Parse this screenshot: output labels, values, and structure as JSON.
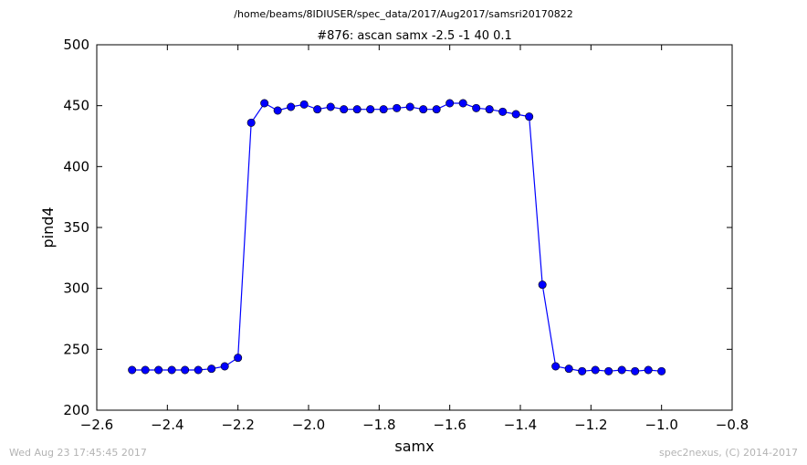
{
  "suptitle": "/home/beams/8IDIUSER/spec_data/2017/Aug2017/samsri20170822",
  "footer": {
    "timestamp": "Wed Aug 23 17:45:45 2017",
    "credit": "spec2nexus, (C) 2014-2017"
  },
  "colors": {
    "series": "#0000ff",
    "axes": "#000000",
    "footer": "#b3b3b3"
  },
  "chart_data": {
    "type": "line",
    "title": "#876: ascan  samx -2.5 -1  40 0.1",
    "xlabel": "samx",
    "ylabel": "pind4",
    "xlim": [
      -2.6,
      -0.8
    ],
    "ylim": [
      200,
      500
    ],
    "xticks": [
      -2.6,
      -2.4,
      -2.2,
      -2.0,
      -1.8,
      -1.6,
      -1.4,
      -1.2,
      -1.0,
      -0.8
    ],
    "xtick_labels": [
      "−2.6",
      "−2.4",
      "−2.2",
      "−2.0",
      "−1.8",
      "−1.6",
      "−1.4",
      "−1.2",
      "−1.0",
      "−0.8"
    ],
    "yticks": [
      200,
      250,
      300,
      350,
      400,
      450,
      500
    ],
    "ytick_labels": [
      "200",
      "250",
      "300",
      "350",
      "400",
      "450",
      "500"
    ],
    "grid": false,
    "marker": "circle",
    "x": [
      -2.5,
      -2.4625,
      -2.425,
      -2.3875,
      -2.35,
      -2.3125,
      -2.275,
      -2.2375,
      -2.2,
      -2.1625,
      -2.125,
      -2.0875,
      -2.05,
      -2.0125,
      -1.975,
      -1.9375,
      -1.9,
      -1.8625,
      -1.825,
      -1.7875,
      -1.75,
      -1.7125,
      -1.675,
      -1.6375,
      -1.6,
      -1.5625,
      -1.525,
      -1.4875,
      -1.45,
      -1.4125,
      -1.375,
      -1.3375,
      -1.3,
      -1.2625,
      -1.225,
      -1.1875,
      -1.15,
      -1.1125,
      -1.075,
      -1.0375,
      -1.0
    ],
    "y": [
      233,
      233,
      233,
      233,
      233,
      233,
      234,
      236,
      243,
      436,
      452,
      446,
      449,
      451,
      447,
      449,
      447,
      447,
      447,
      447,
      448,
      449,
      447,
      447,
      452,
      452,
      448,
      447,
      445,
      443,
      441,
      303,
      236,
      234,
      232,
      233,
      232,
      233,
      232,
      233,
      232
    ]
  }
}
